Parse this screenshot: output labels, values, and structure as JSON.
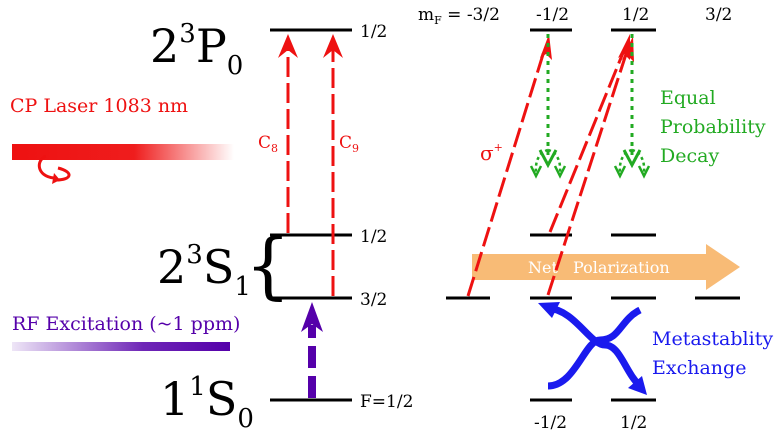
{
  "states": {
    "p0": {
      "main": "2",
      "sup": "3",
      "letter": "P",
      "sub": "0"
    },
    "s1": {
      "main": "2",
      "sup": "3",
      "letter": "S",
      "sub": "1"
    },
    "s0": {
      "main": "1",
      "sup": "1",
      "letter": "S",
      "sub": "0"
    }
  },
  "level_labels": {
    "p_half": "1/2",
    "s1_half": "1/2",
    "s1_three_half": "3/2",
    "ground": "F=1/2"
  },
  "mf": {
    "prefix_main": "m",
    "prefix_sub": "F",
    "first": " = -3/2",
    "second": "-1/2",
    "third": "1/2",
    "fourth": "3/2"
  },
  "bottom_mf": {
    "left": "-1/2",
    "right": "1/2"
  },
  "labels": {
    "laser": "CP Laser 1083 nm",
    "rf": "RF Excitation (~1 ppm)",
    "c8_main": "C",
    "c8_sub": "8",
    "c9_main": "C",
    "c9_sub": "9",
    "sigma_main": "σ",
    "sigma_sup": "+",
    "decay": [
      "Equal",
      "Probability",
      "Decay"
    ],
    "exchange": [
      "Metastablity",
      "Exchange"
    ],
    "net_a": "Net",
    "net_b": "Polarization"
  },
  "colors": {
    "red": "#ee1111",
    "green": "#22aa22",
    "purple": "#5500aa",
    "blue": "#1a1aee",
    "orange": "#f7b56a",
    "black": "#000000"
  }
}
